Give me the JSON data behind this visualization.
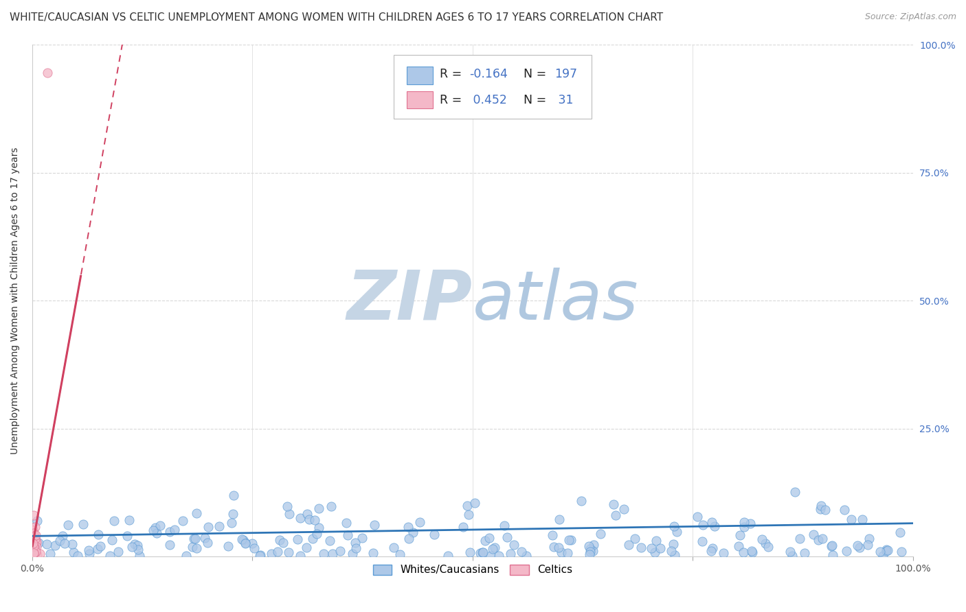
{
  "title": "WHITE/CAUCASIAN VS CELTIC UNEMPLOYMENT AMONG WOMEN WITH CHILDREN AGES 6 TO 17 YEARS CORRELATION CHART",
  "source": "Source: ZipAtlas.com",
  "ylabel": "Unemployment Among Women with Children Ages 6 to 17 years",
  "xlim": [
    0,
    1.0
  ],
  "ylim": [
    0,
    1.0
  ],
  "xticks": [
    0.0,
    0.25,
    0.5,
    0.75,
    1.0
  ],
  "xticklabels": [
    "0.0%",
    "",
    "",
    "",
    "100.0%"
  ],
  "yticks": [
    0.0,
    0.25,
    0.5,
    0.75,
    1.0
  ],
  "yticklabels_right": [
    "",
    "25.0%",
    "50.0%",
    "75.0%",
    "100.0%"
  ],
  "blue_R": -0.164,
  "blue_N": 197,
  "pink_R": 0.452,
  "pink_N": 31,
  "blue_color": "#adc8e8",
  "blue_edge_color": "#5b9bd5",
  "blue_line_color": "#2e75b6",
  "pink_color": "#f4b8c8",
  "pink_edge_color": "#e07090",
  "pink_line_color": "#d04060",
  "grid_color": "#d8d8d8",
  "watermark_zip_color": "#c8d8e8",
  "watermark_atlas_color": "#c8d8e8",
  "title_fontsize": 11,
  "ylabel_fontsize": 10,
  "tick_color_right": "#4472c4",
  "tick_color_bottom": "#555555"
}
